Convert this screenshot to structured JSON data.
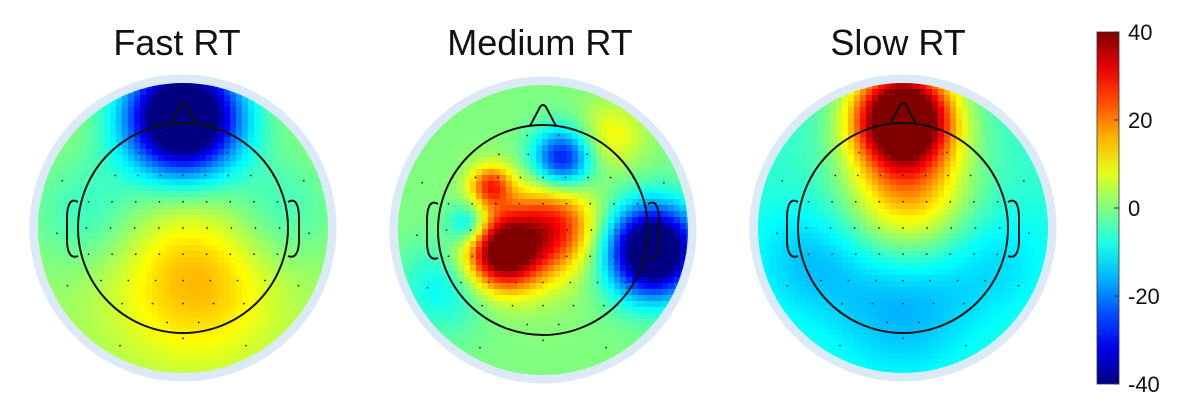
{
  "chart_data": {
    "type": "heatmap",
    "colorbar": {
      "min": -40,
      "max": 40,
      "ticks": [
        "40",
        "20",
        "0",
        "-20",
        "-40"
      ]
    },
    "maps": [
      {
        "title": "Fast RT",
        "baseline": 2,
        "sources": [
          {
            "u": 0.0,
            "v": -1.05,
            "value": -60,
            "spread": 0.38
          },
          {
            "u": 0.12,
            "v": 0.5,
            "value": 14,
            "spread": 0.55
          },
          {
            "u": -0.9,
            "v": -0.15,
            "value": -8,
            "spread": 0.4
          },
          {
            "u": 0.9,
            "v": -0.15,
            "value": -8,
            "spread": 0.4
          }
        ]
      },
      {
        "title": "Medium RT",
        "baseline": 0,
        "sources": [
          {
            "u": -0.4,
            "v": 0.22,
            "value": 40,
            "spread": 0.24
          },
          {
            "u": -0.08,
            "v": 0.05,
            "value": 20,
            "spread": 0.34
          },
          {
            "u": 0.18,
            "v": -0.05,
            "value": 14,
            "spread": 0.26
          },
          {
            "u": -0.5,
            "v": -0.42,
            "value": 24,
            "spread": 0.14
          },
          {
            "u": 0.18,
            "v": -0.68,
            "value": -30,
            "spread": 0.2
          },
          {
            "u": 1.05,
            "v": 0.2,
            "value": -55,
            "spread": 0.3
          },
          {
            "u": -0.7,
            "v": -0.05,
            "value": -18,
            "spread": 0.14
          },
          {
            "u": 0.65,
            "v": -0.9,
            "value": 10,
            "spread": 0.22
          },
          {
            "u": -0.95,
            "v": 0.55,
            "value": -10,
            "spread": 0.3
          }
        ]
      },
      {
        "title": "Slow RT",
        "baseline": -6,
        "sources": [
          {
            "u": 0.0,
            "v": -1.05,
            "value": 65,
            "spread": 0.32
          },
          {
            "u": 0.05,
            "v": -0.32,
            "value": 22,
            "spread": 0.42
          },
          {
            "u": 0.0,
            "v": 0.75,
            "value": -10,
            "spread": 0.5
          },
          {
            "u": -0.9,
            "v": 0.3,
            "value": -8,
            "spread": 0.4
          },
          {
            "u": 0.9,
            "v": 0.3,
            "value": -6,
            "spread": 0.4
          }
        ]
      }
    ]
  }
}
